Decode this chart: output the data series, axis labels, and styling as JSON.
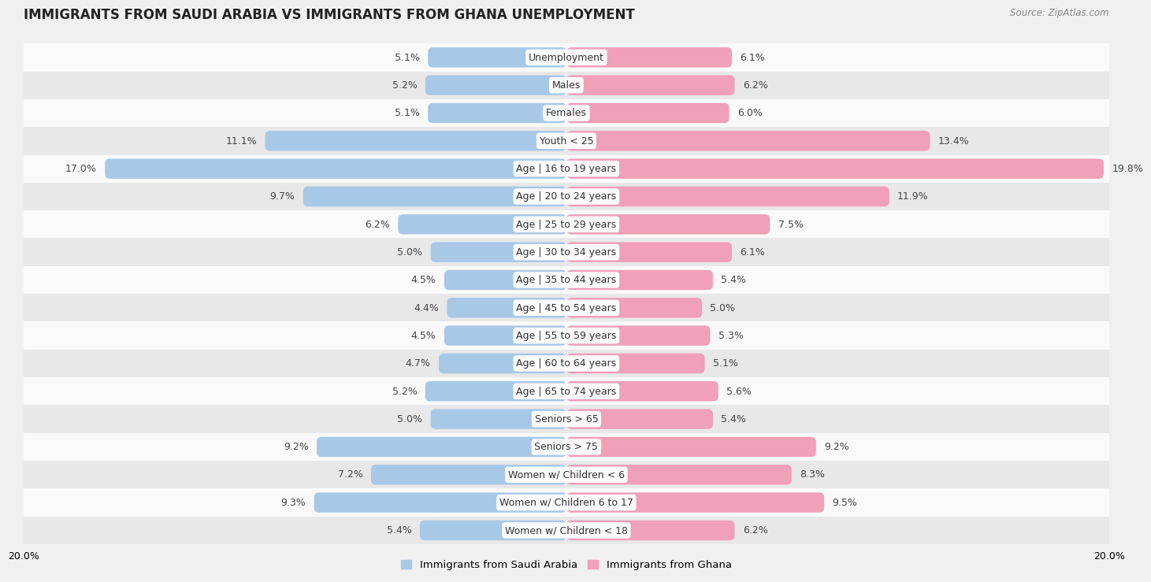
{
  "title": "IMMIGRANTS FROM SAUDI ARABIA VS IMMIGRANTS FROM GHANA UNEMPLOYMENT",
  "source": "Source: ZipAtlas.com",
  "categories": [
    "Unemployment",
    "Males",
    "Females",
    "Youth < 25",
    "Age | 16 to 19 years",
    "Age | 20 to 24 years",
    "Age | 25 to 29 years",
    "Age | 30 to 34 years",
    "Age | 35 to 44 years",
    "Age | 45 to 54 years",
    "Age | 55 to 59 years",
    "Age | 60 to 64 years",
    "Age | 65 to 74 years",
    "Seniors > 65",
    "Seniors > 75",
    "Women w/ Children < 6",
    "Women w/ Children 6 to 17",
    "Women w/ Children < 18"
  ],
  "saudi_values": [
    5.1,
    5.2,
    5.1,
    11.1,
    17.0,
    9.7,
    6.2,
    5.0,
    4.5,
    4.4,
    4.5,
    4.7,
    5.2,
    5.0,
    9.2,
    7.2,
    9.3,
    5.4
  ],
  "ghana_values": [
    6.1,
    6.2,
    6.0,
    13.4,
    19.8,
    11.9,
    7.5,
    6.1,
    5.4,
    5.0,
    5.3,
    5.1,
    5.6,
    5.4,
    9.2,
    8.3,
    9.5,
    6.2
  ],
  "saudi_color": "#a8c8e8",
  "ghana_color": "#f0a0b8",
  "background_color": "#f0f0f0",
  "row_bg_light": "#fafafa",
  "row_bg_dark": "#e8e8e8",
  "xlim": 20.0,
  "bar_height": 0.72,
  "label_fontsize": 9,
  "category_fontsize": 9,
  "title_fontsize": 12,
  "legend_label_saudi": "Immigrants from Saudi Arabia",
  "legend_label_ghana": "Immigrants from Ghana"
}
